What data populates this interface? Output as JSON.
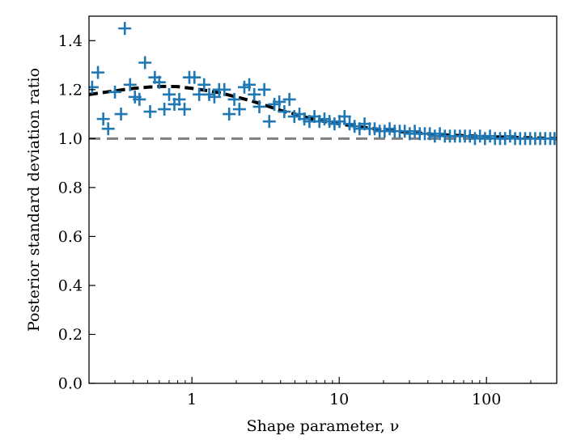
{
  "chart_data": {
    "type": "scatter",
    "title": "",
    "xlabel": "Shape parameter, ν",
    "ylabel": "Posterior standard deviation ratio",
    "xscale": "log",
    "xlim": [
      0.2,
      300
    ],
    "ylim": [
      0.0,
      1.5
    ],
    "x_ticks": [
      {
        "value": 1,
        "label": "1"
      },
      {
        "value": 10,
        "label": "10"
      },
      {
        "value": 100,
        "label": "100"
      }
    ],
    "y_ticks": [
      {
        "value": 0.0,
        "label": "0.0"
      },
      {
        "value": 0.2,
        "label": "0.2"
      },
      {
        "value": 0.4,
        "label": "0.4"
      },
      {
        "value": 0.6,
        "label": "0.6"
      },
      {
        "value": 0.8,
        "label": "0.8"
      },
      {
        "value": 1.0,
        "label": "1.0"
      },
      {
        "value": 1.2,
        "label": "1.2"
      },
      {
        "value": 1.4,
        "label": "1.4"
      }
    ],
    "colors": {
      "points": "#1f77b4",
      "fit_line": "#000000",
      "reference_line": "#808080"
    },
    "series": [
      {
        "name": "samples",
        "kind": "scatter",
        "marker": "plus",
        "x": [
          0.21,
          0.23,
          0.25,
          0.27,
          0.3,
          0.33,
          0.35,
          0.38,
          0.41,
          0.44,
          0.48,
          0.52,
          0.56,
          0.6,
          0.65,
          0.7,
          0.76,
          0.82,
          0.89,
          0.96,
          1.04,
          1.12,
          1.21,
          1.31,
          1.42,
          1.53,
          1.66,
          1.79,
          1.94,
          2.1,
          2.27,
          2.45,
          2.65,
          2.87,
          3.1,
          3.35,
          3.63,
          3.92,
          4.24,
          4.59,
          4.96,
          5.37,
          5.8,
          6.28,
          6.79,
          7.34,
          7.94,
          8.59,
          9.29,
          10.05,
          10.87,
          11.76,
          12.71,
          13.75,
          14.87,
          16.09,
          17.4,
          18.82,
          20.35,
          22.01,
          23.81,
          25.75,
          27.86,
          30.13,
          32.59,
          35.25,
          38.12,
          41.24,
          44.6,
          48.24,
          52.18,
          56.44,
          61.04,
          66.03,
          71.41,
          77.24,
          83.55,
          90.37,
          97.74,
          105.7,
          114.3,
          123.7,
          133.8,
          144.7,
          156.5,
          169.3,
          183.1,
          198.0,
          214.2,
          231.7,
          250.6,
          271.0,
          290.0
        ],
        "y": [
          1.21,
          1.27,
          1.08,
          1.04,
          1.19,
          1.1,
          1.45,
          1.22,
          1.17,
          1.16,
          1.31,
          1.11,
          1.25,
          1.23,
          1.12,
          1.18,
          1.14,
          1.16,
          1.12,
          1.25,
          1.25,
          1.18,
          1.22,
          1.18,
          1.17,
          1.2,
          1.2,
          1.1,
          1.16,
          1.12,
          1.21,
          1.22,
          1.18,
          1.13,
          1.2,
          1.07,
          1.14,
          1.15,
          1.11,
          1.16,
          1.09,
          1.1,
          1.08,
          1.07,
          1.09,
          1.07,
          1.08,
          1.07,
          1.06,
          1.07,
          1.09,
          1.06,
          1.05,
          1.04,
          1.06,
          1.04,
          1.04,
          1.03,
          1.03,
          1.04,
          1.03,
          1.03,
          1.03,
          1.02,
          1.03,
          1.02,
          1.02,
          1.02,
          1.01,
          1.02,
          1.01,
          1.01,
          1.01,
          1.01,
          1.01,
          1.01,
          1.0,
          1.01,
          1.0,
          1.01,
          1.0,
          1.0,
          1.0,
          1.01,
          1.0,
          1.0,
          1.0,
          1.0,
          1.0,
          1.0,
          1.0,
          1.0,
          1.0
        ]
      },
      {
        "name": "fit",
        "kind": "line",
        "style": "dashed",
        "x": [
          0.2,
          0.3,
          0.4,
          0.5,
          0.6,
          0.7,
          0.8,
          1.0,
          1.3,
          1.6,
          2.0,
          2.5,
          3.0,
          4.0,
          5.0,
          7.0,
          10.0,
          15.0,
          20.0,
          30.0,
          50.0,
          70.0,
          100.0,
          150.0,
          200.0,
          300.0
        ],
        "y": [
          1.18,
          1.195,
          1.205,
          1.21,
          1.213,
          1.213,
          1.212,
          1.205,
          1.195,
          1.185,
          1.17,
          1.155,
          1.14,
          1.115,
          1.1,
          1.075,
          1.06,
          1.045,
          1.035,
          1.025,
          1.015,
          1.012,
          1.008,
          1.005,
          1.003,
          1.0
        ]
      },
      {
        "name": "reference",
        "kind": "line",
        "style": "dashed",
        "x": [
          0.2,
          300.0
        ],
        "y": [
          1.0,
          1.0
        ]
      }
    ]
  }
}
